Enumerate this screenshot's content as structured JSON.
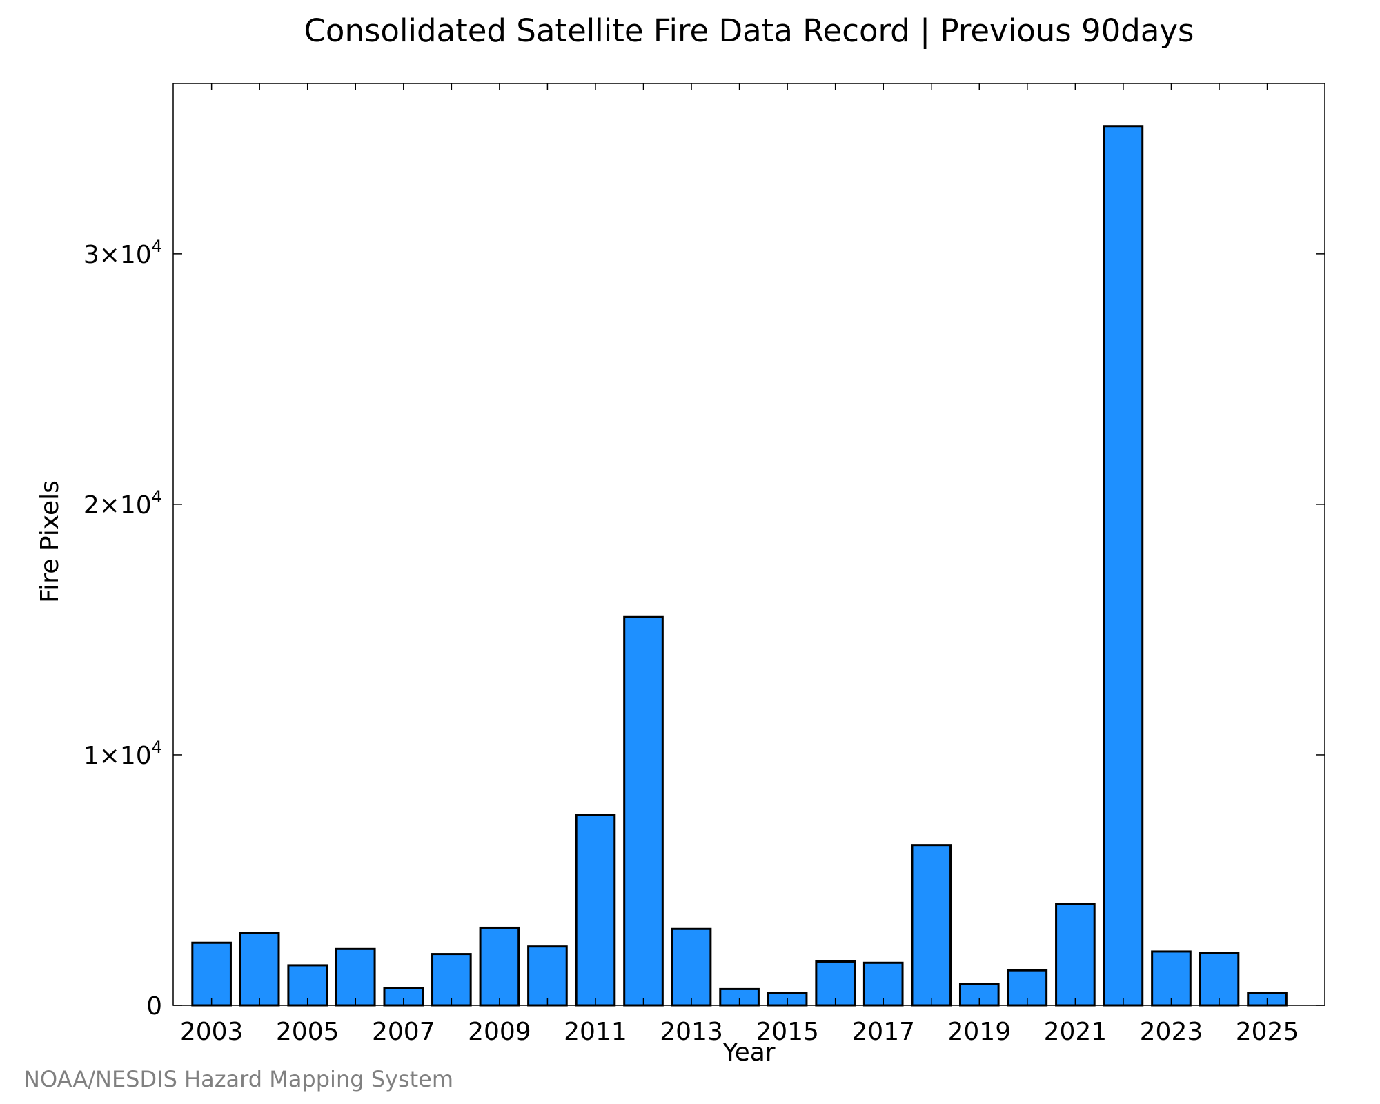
{
  "chart_data": {
    "type": "bar",
    "title": "Consolidated Satellite Fire Data Record | Previous 90days",
    "xlabel": "Year",
    "ylabel": "Fire Pixels",
    "categories": [
      "2003",
      "2004",
      "2005",
      "2006",
      "2007",
      "2008",
      "2009",
      "2010",
      "2011",
      "2012",
      "2013",
      "2014",
      "2015",
      "2016",
      "2017",
      "2018",
      "2019",
      "2020",
      "2021",
      "2022",
      "2023",
      "2024",
      "2025"
    ],
    "values": [
      2500,
      2900,
      1600,
      2250,
      700,
      2050,
      3100,
      2350,
      7600,
      15500,
      3050,
      650,
      500,
      1750,
      1700,
      6400,
      850,
      1400,
      4050,
      35100,
      2150,
      2100,
      500
    ],
    "x_tick_labels": [
      "2003",
      "2005",
      "2007",
      "2009",
      "2011",
      "2013",
      "2015",
      "2017",
      "2019",
      "2021",
      "2023",
      "2025"
    ],
    "y_ticks": [
      {
        "value": 0,
        "mantissa": "0",
        "exponent": ""
      },
      {
        "value": 10000,
        "mantissa": "1×10",
        "exponent": "4"
      },
      {
        "value": 20000,
        "mantissa": "2×10",
        "exponent": "4"
      },
      {
        "value": 30000,
        "mantissa": "3×10",
        "exponent": "4"
      }
    ],
    "ylim": [
      0,
      36800
    ],
    "xlim": [
      2002.2,
      2026.2
    ],
    "grid": false,
    "bar_color": "#1e90ff",
    "bar_edge_color": "#000000"
  },
  "credit": "NOAA/NESDIS Hazard Mapping System"
}
